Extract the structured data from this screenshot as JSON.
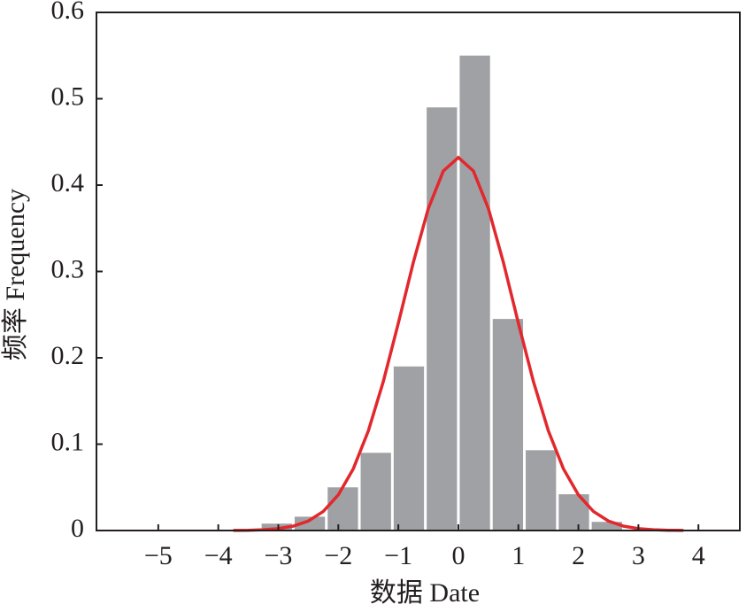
{
  "chart_data": {
    "type": "histogram",
    "x_label": "数据 Date",
    "y_label": "频率 Frequency",
    "bins": [
      -3.3,
      -2.75,
      -2.2,
      -1.65,
      -1.1,
      -0.55,
      0,
      0.55,
      1.1,
      1.65,
      2.2,
      2.75
    ],
    "values": [
      0.008,
      0.016,
      0.05,
      0.09,
      0.19,
      0.49,
      0.55,
      0.245,
      0.093,
      0.042,
      0.01
    ],
    "color": "#a0a1a5",
    "curve": {
      "color": "#e2282d",
      "x": [
        -3.75,
        -3.5,
        -3.25,
        -3,
        -2.75,
        -2.5,
        -2.25,
        -2,
        -1.75,
        -1.5,
        -1.25,
        -1,
        -0.75,
        -0.5,
        -0.25,
        0,
        0.25,
        0.5,
        0.75,
        1,
        1.25,
        1.5,
        1.75,
        2,
        2.25,
        2.5,
        2.75,
        3,
        3.25,
        3.5,
        3.75
      ],
      "y": [
        0.0001,
        0.0003,
        0.0009,
        0.0022,
        0.0051,
        0.011,
        0.0221,
        0.0413,
        0.0716,
        0.1154,
        0.1727,
        0.2402,
        0.3106,
        0.373,
        0.4164,
        0.432,
        0.4164,
        0.373,
        0.3106,
        0.2402,
        0.1727,
        0.1154,
        0.0716,
        0.0413,
        0.0221,
        0.011,
        0.0051,
        0.0022,
        0.0009,
        0.0003,
        0.0001
      ]
    },
    "xlim": [
      -6.03,
      4.69
    ],
    "xticks": [
      {
        "value": -5,
        "label": "−5"
      },
      {
        "value": -4,
        "label": "−4"
      },
      {
        "value": -3,
        "label": "−3"
      },
      {
        "value": -2,
        "label": "−2"
      },
      {
        "value": -1,
        "label": "−1"
      },
      0,
      1,
      2,
      3,
      4
    ],
    "ylim": [
      0,
      0.6
    ],
    "yticks": [
      0,
      0.1,
      0.2,
      0.3,
      0.4,
      0.5,
      0.6
    ],
    "grid": false
  }
}
